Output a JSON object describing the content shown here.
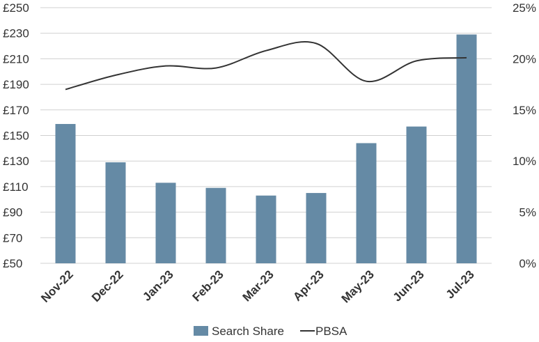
{
  "chart_data": {
    "type": "bar",
    "categories": [
      "Nov-22",
      "Dec-22",
      "Jan-23",
      "Feb-23",
      "Mar-23",
      "Apr-23",
      "May-23",
      "Jun-23",
      "Jul-23"
    ],
    "series": [
      {
        "name": "Search Share",
        "kind": "bar",
        "axis": "left",
        "color": "#658aa5",
        "values": [
          159,
          129,
          113,
          109,
          103,
          105,
          144,
          157,
          229
        ]
      },
      {
        "name": "PBSA",
        "kind": "line",
        "axis": "right",
        "color": "#333333",
        "values": [
          17.0,
          18.4,
          19.3,
          19.1,
          20.8,
          21.5,
          17.8,
          19.8,
          20.1
        ]
      }
    ],
    "y_left": {
      "ylim": [
        50,
        250
      ],
      "ticks": [
        50,
        70,
        90,
        110,
        130,
        150,
        170,
        190,
        210,
        230,
        250
      ],
      "tick_labels": [
        "£50",
        "£70",
        "£90",
        "£110",
        "£130",
        "£150",
        "£170",
        "£190",
        "£210",
        "£230",
        "£250"
      ]
    },
    "y_right": {
      "ylim": [
        0,
        25
      ],
      "ticks": [
        0,
        5,
        10,
        15,
        20,
        25
      ],
      "tick_labels": [
        "0%",
        "5%",
        "10%",
        "15%",
        "20%",
        "25%"
      ]
    },
    "grid": true,
    "legend": {
      "position": "bottom",
      "entries": [
        "Search Share",
        "PBSA"
      ]
    }
  }
}
